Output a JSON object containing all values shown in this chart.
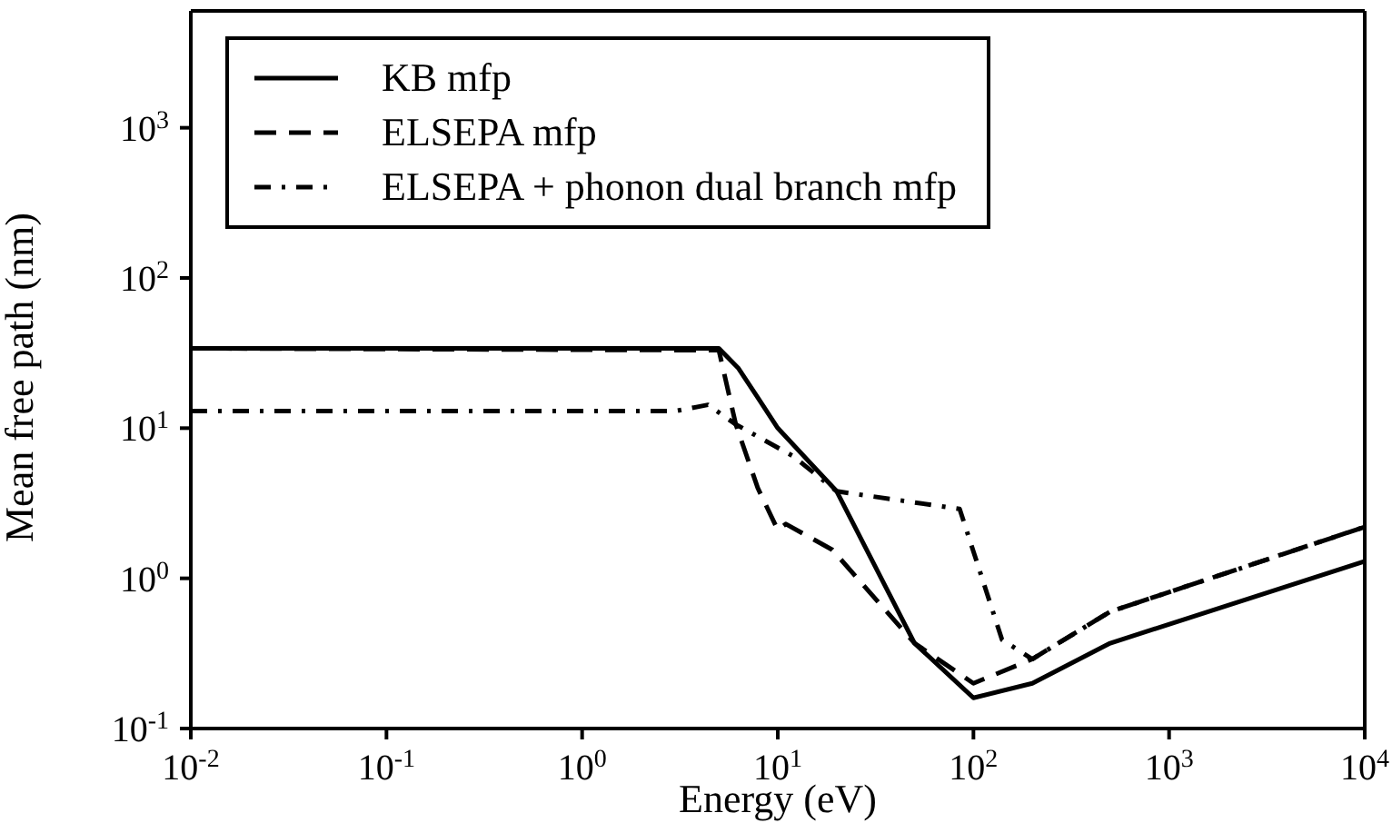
{
  "chart_data": {
    "type": "line",
    "xlabel": "Energy (eV)",
    "ylabel": "Mean free path (nm)",
    "log": "xy",
    "legend": "top left",
    "marker": "none",
    "xlim": [
      0.01,
      10000
    ],
    "ylim": [
      0.1,
      6000
    ],
    "xticks": [
      {
        "value": 0.01,
        "label": "10$^{-2}$"
      },
      {
        "value": 0.1,
        "label": "10$^{-1}$"
      },
      {
        "value": 1,
        "label": "10$^{0}$"
      },
      {
        "value": 10,
        "label": "10$^{1}$"
      },
      {
        "value": 100,
        "label": "10$^{2}$"
      },
      {
        "value": 1000,
        "label": "10$^{3}$"
      },
      {
        "value": 10000,
        "label": "10$^{4}$"
      }
    ],
    "yticks": [
      {
        "value": 0.1,
        "label": "10$^{-1}$"
      },
      {
        "value": 1,
        "label": "10$^{0}$"
      },
      {
        "value": 10,
        "label": "10$^{1}$"
      },
      {
        "value": 100,
        "label": "10$^{2}$"
      },
      {
        "value": 1000,
        "label": "10$^{3}$"
      }
    ],
    "series": [
      {
        "name": "KB mfp",
        "color": "#000000",
        "line_style": "solid",
        "x": [
          0.01,
          5,
          6.3,
          7.9,
          10,
          20,
          50,
          100,
          200,
          500,
          10000
        ],
        "values": [
          34,
          34,
          25,
          16,
          10,
          3.8,
          0.37,
          0.16,
          0.2,
          0.37,
          1.3
        ]
      },
      {
        "name": "ELSEPA mfp",
        "color": "#000000",
        "line_style": "dashed",
        "x": [
          0.01,
          5,
          6.1,
          7.9,
          10,
          11,
          19,
          50,
          100,
          200,
          500,
          10000
        ],
        "values": [
          34,
          33,
          10.6,
          4,
          2.1,
          2.3,
          1.55,
          0.37,
          0.2,
          0.29,
          0.6,
          2.2
        ]
      },
      {
        "name": "ELSEPA + phonon dual branch mfp",
        "color": "#000000",
        "line_style": "dotted",
        "x": [
          0.01,
          3,
          4.4,
          6.1,
          12,
          20,
          85,
          140,
          200,
          500,
          10000
        ],
        "values": [
          13,
          13,
          14.3,
          10.6,
          6.5,
          3.8,
          2.9,
          0.39,
          0.29,
          0.6,
          2.2
        ]
      }
    ]
  }
}
